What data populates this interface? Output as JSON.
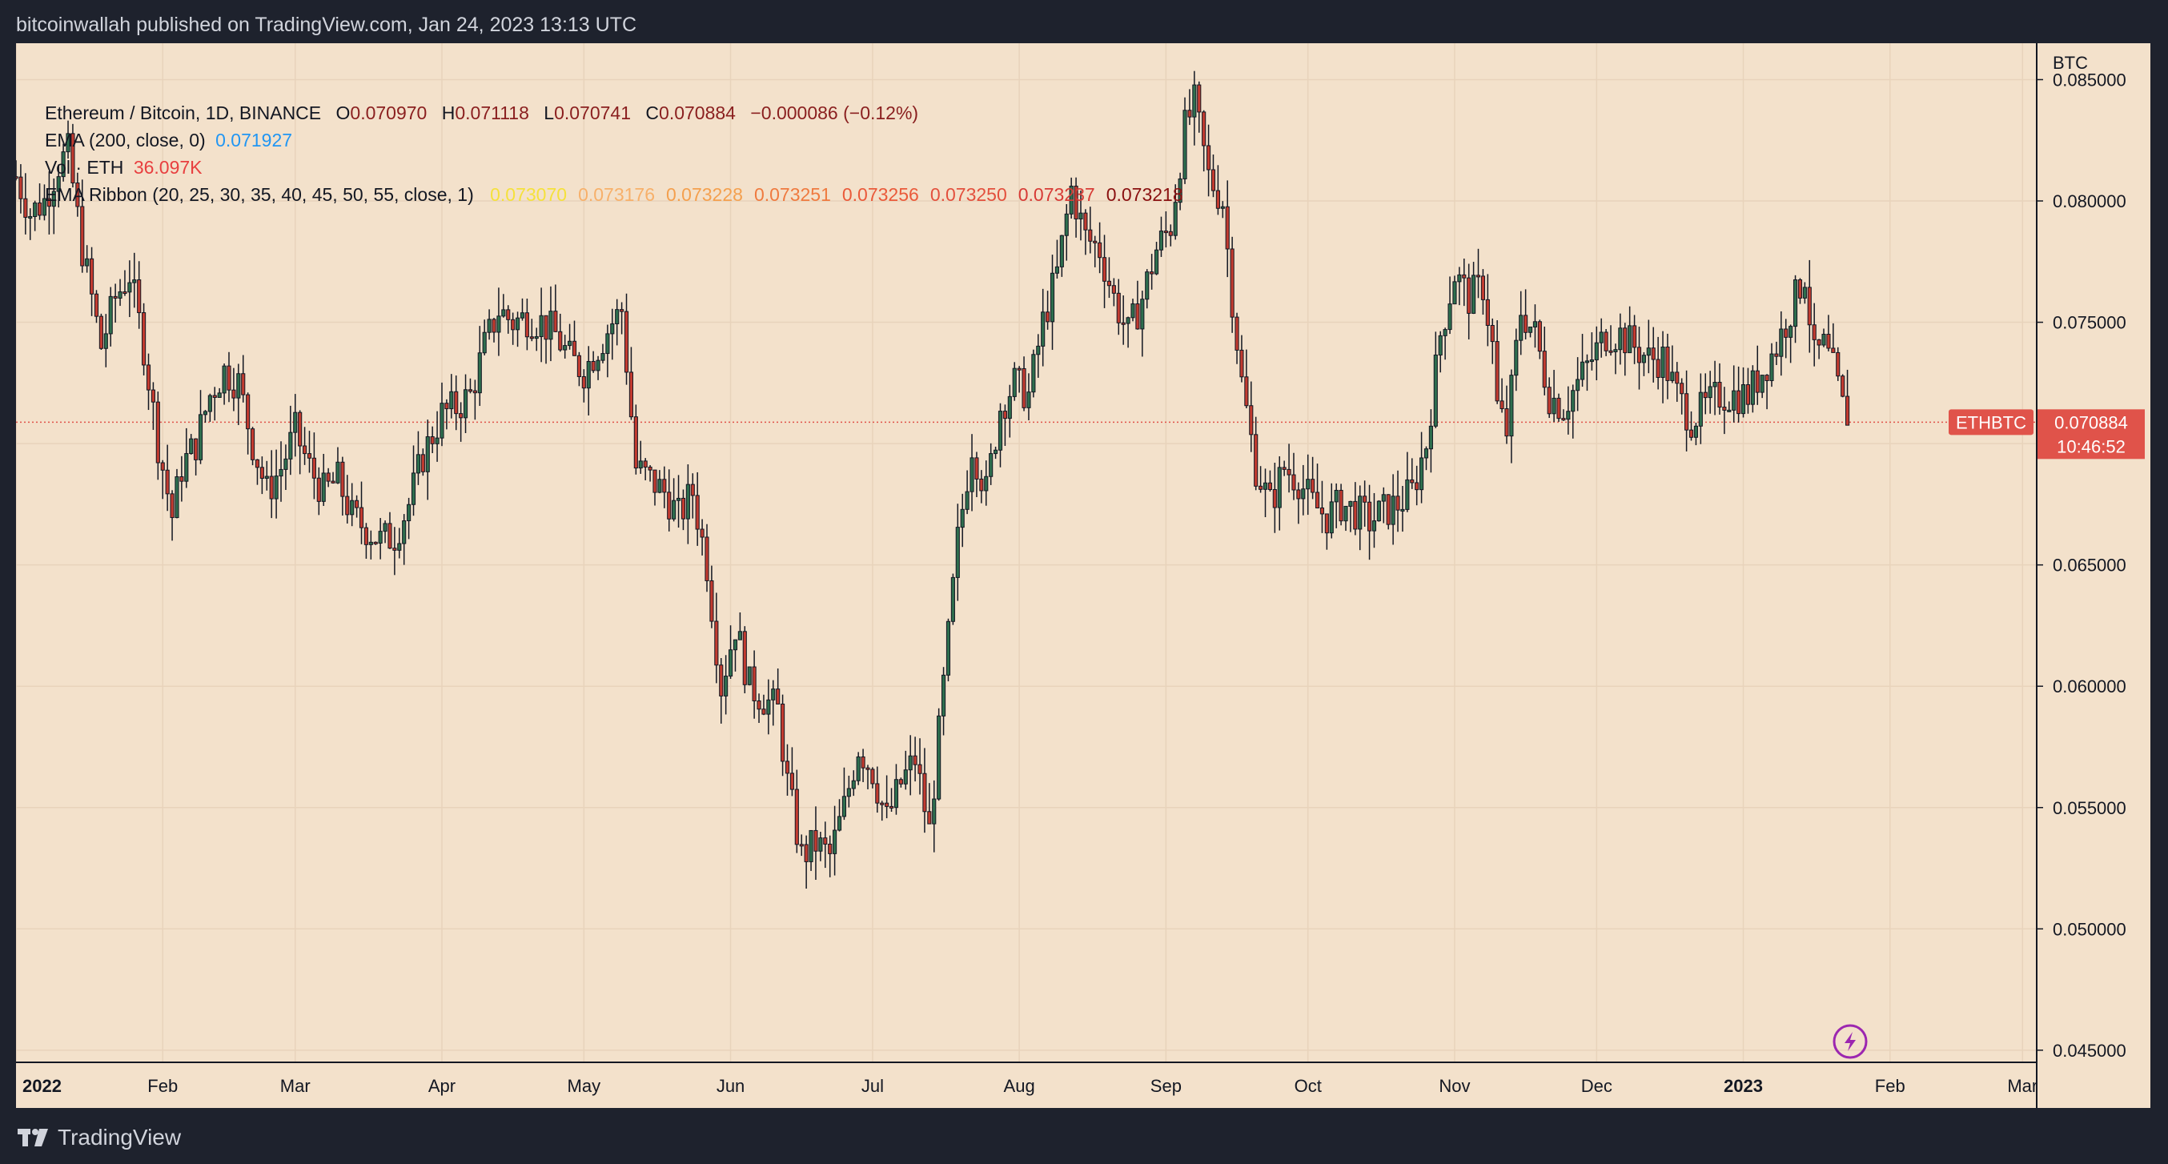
{
  "header": {
    "published": "bitcoinwallah published on TradingView.com, Jan 24, 2023 13:13 UTC"
  },
  "legend": {
    "symbol": "Ethereum / Bitcoin, 1D, BINANCE",
    "o_label": "O",
    "o": "0.070970",
    "h_label": "H",
    "h": "0.071118",
    "l_label": "L",
    "l": "0.070741",
    "c_label": "C",
    "c": "0.070884",
    "change": "−0.000086 (−0.12%)",
    "ema_label": "EMA (200, close, 0)",
    "ema_value": "0.071927",
    "vol_label": "Vol · ETH",
    "vol_value": "36.097K",
    "ribbon_label": "EMA Ribbon (20, 25, 30, 35, 40, 45, 50, 55, close, 1)",
    "ribbon_values": [
      "0.073070",
      "0.073176",
      "0.073228",
      "0.073251",
      "0.073256",
      "0.073250",
      "0.073237",
      "0.073218"
    ],
    "ribbon_colors": [
      "#f5e13c",
      "#f7b06a",
      "#f4a04e",
      "#ef7a3f",
      "#ea5a3a",
      "#e3503d",
      "#d73b36",
      "#8a1010"
    ]
  },
  "price_badge": {
    "symbol": "ETHBTC",
    "price": "0.070884",
    "countdown": "10:46:52"
  },
  "footer": {
    "brand": "TradingView"
  },
  "colors": {
    "up": "#2e6e4e",
    "down": "#c23b30",
    "wick": "#131722",
    "background": "#f3e1cb",
    "badge": "#e0534a",
    "ema_blue": "#2196f3",
    "vol_red": "#e83f3f"
  },
  "chart_data": {
    "type": "candlestick",
    "y_axis": {
      "label": "BTC",
      "ticks": [
        "0.085000",
        "0.080000",
        "0.075000",
        "0.070000",
        "0.065000",
        "0.060000",
        "0.055000",
        "0.050000",
        "0.045000"
      ],
      "range": [
        0.0445,
        0.0865
      ]
    },
    "x_axis": {
      "range": [
        "2022-01-01",
        "2023-03-04"
      ],
      "ticks": [
        {
          "label": "2022",
          "date": "2022-01-01",
          "bold": true
        },
        {
          "label": "Feb",
          "date": "2022-02-01"
        },
        {
          "label": "Mar",
          "date": "2022-03-01"
        },
        {
          "label": "Apr",
          "date": "2022-04-01"
        },
        {
          "label": "May",
          "date": "2022-05-01"
        },
        {
          "label": "Jun",
          "date": "2022-06-01"
        },
        {
          "label": "Jul",
          "date": "2022-07-01"
        },
        {
          "label": "Aug",
          "date": "2022-08-01"
        },
        {
          "label": "Sep",
          "date": "2022-09-01"
        },
        {
          "label": "Oct",
          "date": "2022-10-01"
        },
        {
          "label": "Nov",
          "date": "2022-11-01"
        },
        {
          "label": "Dec",
          "date": "2022-12-01"
        },
        {
          "label": "2023",
          "date": "2023-01-01",
          "bold": true
        },
        {
          "label": "Feb",
          "date": "2023-02-01"
        },
        {
          "label": "Mar",
          "date": "2023-03-01"
        }
      ]
    },
    "last_price": 0.070884,
    "series_closes": [
      [
        "2022-01-01",
        0.081
      ],
      [
        "2022-01-04",
        0.0795
      ],
      [
        "2022-01-07",
        0.08
      ],
      [
        "2022-01-10",
        0.0815
      ],
      [
        "2022-01-12",
        0.082
      ],
      [
        "2022-01-15",
        0.078
      ],
      [
        "2022-01-19",
        0.074
      ],
      [
        "2022-01-22",
        0.076
      ],
      [
        "2022-01-25",
        0.077
      ],
      [
        "2022-01-28",
        0.074
      ],
      [
        "2022-01-31",
        0.07
      ],
      [
        "2022-02-03",
        0.067
      ],
      [
        "2022-02-05",
        0.069
      ],
      [
        "2022-02-08",
        0.07
      ],
      [
        "2022-02-11",
        0.072
      ],
      [
        "2022-02-14",
        0.073
      ],
      [
        "2022-02-17",
        0.0725
      ],
      [
        "2022-02-20",
        0.07
      ],
      [
        "2022-02-23",
        0.068
      ],
      [
        "2022-02-26",
        0.069
      ],
      [
        "2022-03-01",
        0.0705
      ],
      [
        "2022-03-04",
        0.069
      ],
      [
        "2022-03-07",
        0.068
      ],
      [
        "2022-03-10",
        0.0685
      ],
      [
        "2022-03-13",
        0.067
      ],
      [
        "2022-03-16",
        0.0665
      ],
      [
        "2022-03-19",
        0.066
      ],
      [
        "2022-03-22",
        0.0662
      ],
      [
        "2022-03-25",
        0.0675
      ],
      [
        "2022-03-28",
        0.0695
      ],
      [
        "2022-04-01",
        0.0712
      ],
      [
        "2022-04-04",
        0.0715
      ],
      [
        "2022-04-07",
        0.072
      ],
      [
        "2022-04-10",
        0.074
      ],
      [
        "2022-04-13",
        0.0755
      ],
      [
        "2022-04-16",
        0.075
      ],
      [
        "2022-04-19",
        0.0752
      ],
      [
        "2022-04-22",
        0.075
      ],
      [
        "2022-04-25",
        0.0745
      ],
      [
        "2022-04-28",
        0.0735
      ],
      [
        "2022-05-01",
        0.073
      ],
      [
        "2022-05-04",
        0.074
      ],
      [
        "2022-05-07",
        0.075
      ],
      [
        "2022-05-09",
        0.0755
      ],
      [
        "2022-05-12",
        0.069
      ],
      [
        "2022-05-15",
        0.0685
      ],
      [
        "2022-05-18",
        0.068
      ],
      [
        "2022-05-21",
        0.067
      ],
      [
        "2022-05-24",
        0.068
      ],
      [
        "2022-05-27",
        0.065
      ],
      [
        "2022-05-30",
        0.06
      ],
      [
        "2022-06-02",
        0.0625
      ],
      [
        "2022-06-05",
        0.06
      ],
      [
        "2022-06-08",
        0.0595
      ],
      [
        "2022-06-11",
        0.059
      ],
      [
        "2022-06-13",
        0.056
      ],
      [
        "2022-06-16",
        0.053
      ],
      [
        "2022-06-19",
        0.0535
      ],
      [
        "2022-06-22",
        0.053
      ],
      [
        "2022-06-25",
        0.055
      ],
      [
        "2022-06-28",
        0.0575
      ],
      [
        "2022-07-01",
        0.0565
      ],
      [
        "2022-07-04",
        0.0545
      ],
      [
        "2022-07-07",
        0.056
      ],
      [
        "2022-07-10",
        0.057
      ],
      [
        "2022-07-13",
        0.054
      ],
      [
        "2022-07-16",
        0.06
      ],
      [
        "2022-07-19",
        0.066
      ],
      [
        "2022-07-22",
        0.07
      ],
      [
        "2022-07-25",
        0.068
      ],
      [
        "2022-07-28",
        0.0715
      ],
      [
        "2022-07-31",
        0.0725
      ],
      [
        "2022-08-03",
        0.072
      ],
      [
        "2022-08-06",
        0.075
      ],
      [
        "2022-08-09",
        0.077
      ],
      [
        "2022-08-12",
        0.0805
      ],
      [
        "2022-08-15",
        0.0785
      ],
      [
        "2022-08-18",
        0.078
      ],
      [
        "2022-08-21",
        0.076
      ],
      [
        "2022-08-24",
        0.0745
      ],
      [
        "2022-08-27",
        0.076
      ],
      [
        "2022-08-30",
        0.078
      ],
      [
        "2022-09-02",
        0.079
      ],
      [
        "2022-09-05",
        0.083
      ],
      [
        "2022-09-07",
        0.084
      ],
      [
        "2022-09-10",
        0.081
      ],
      [
        "2022-09-13",
        0.08
      ],
      [
        "2022-09-15",
        0.076
      ],
      [
        "2022-09-17",
        0.0725
      ],
      [
        "2022-09-20",
        0.069
      ],
      [
        "2022-09-23",
        0.0675
      ],
      [
        "2022-09-26",
        0.069
      ],
      [
        "2022-09-29",
        0.0685
      ],
      [
        "2022-10-02",
        0.0675
      ],
      [
        "2022-10-05",
        0.067
      ],
      [
        "2022-10-08",
        0.0675
      ],
      [
        "2022-10-11",
        0.0672
      ],
      [
        "2022-10-14",
        0.0668
      ],
      [
        "2022-10-17",
        0.0672
      ],
      [
        "2022-10-20",
        0.0675
      ],
      [
        "2022-10-23",
        0.068
      ],
      [
        "2022-10-26",
        0.07
      ],
      [
        "2022-10-29",
        0.0745
      ],
      [
        "2022-11-01",
        0.077
      ],
      [
        "2022-11-04",
        0.076
      ],
      [
        "2022-11-07",
        0.0765
      ],
      [
        "2022-11-09",
        0.074
      ],
      [
        "2022-11-10",
        0.0715
      ],
      [
        "2022-11-12",
        0.0705
      ],
      [
        "2022-11-15",
        0.0755
      ],
      [
        "2022-11-18",
        0.0745
      ],
      [
        "2022-11-21",
        0.072
      ],
      [
        "2022-11-24",
        0.0715
      ],
      [
        "2022-11-27",
        0.0725
      ],
      [
        "2022-11-30",
        0.0735
      ],
      [
        "2022-12-03",
        0.0745
      ],
      [
        "2022-12-06",
        0.0745
      ],
      [
        "2022-12-09",
        0.074
      ],
      [
        "2022-12-12",
        0.0735
      ],
      [
        "2022-12-15",
        0.0735
      ],
      [
        "2022-12-18",
        0.072
      ],
      [
        "2022-12-21",
        0.071
      ],
      [
        "2022-12-24",
        0.0715
      ],
      [
        "2022-12-27",
        0.072
      ],
      [
        "2022-12-30",
        0.072
      ],
      [
        "2023-01-02",
        0.072
      ],
      [
        "2023-01-05",
        0.073
      ],
      [
        "2023-01-08",
        0.074
      ],
      [
        "2023-01-11",
        0.0755
      ],
      [
        "2023-01-14",
        0.077
      ],
      [
        "2023-01-16",
        0.0735
      ],
      [
        "2023-01-18",
        0.074
      ],
      [
        "2023-01-20",
        0.073
      ],
      [
        "2023-01-22",
        0.0715
      ],
      [
        "2023-01-24",
        0.0709
      ]
    ]
  }
}
